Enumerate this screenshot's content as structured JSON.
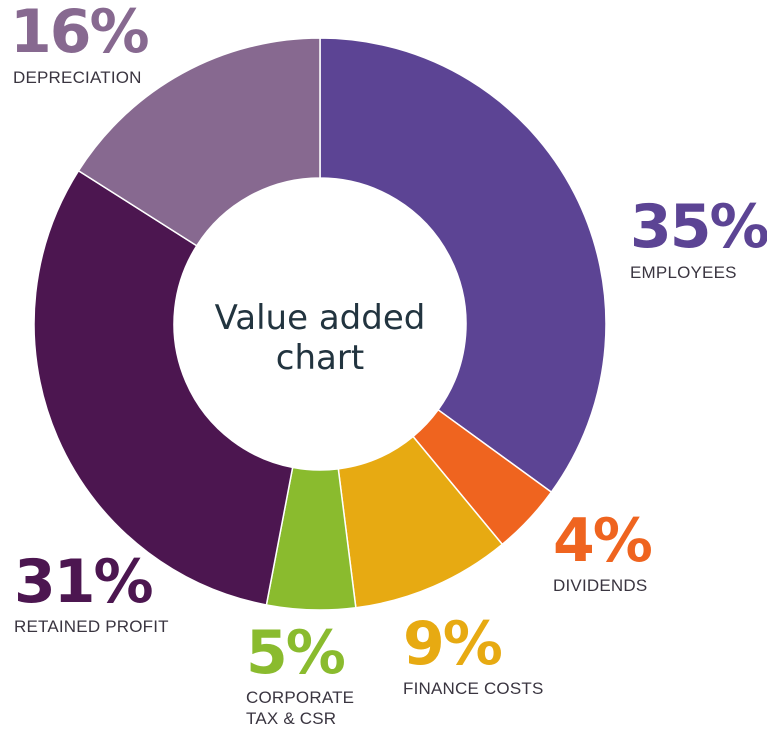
{
  "chart_data": {
    "type": "pie",
    "title": "Value added chart",
    "slices": [
      {
        "label": "EMPLOYEES",
        "value": 35,
        "value_label": "35%",
        "color": "#5c4494"
      },
      {
        "label": "DIVIDENDS",
        "value": 4,
        "value_label": "4%",
        "color": "#ef641f"
      },
      {
        "label": "FINANCE COSTS",
        "value": 9,
        "value_label": "9%",
        "color": "#e7aa12"
      },
      {
        "label": "CORPORATE TAX & CSR",
        "value": 5,
        "value_label": "5%",
        "color": "#8abb2e"
      },
      {
        "label": "RETAINED PROFIT",
        "value": 31,
        "value_label": "31%",
        "color": "#4c1650"
      },
      {
        "label": "DEPRECIATION",
        "value": 16,
        "value_label": "16%",
        "color": "#876990"
      }
    ]
  }
}
